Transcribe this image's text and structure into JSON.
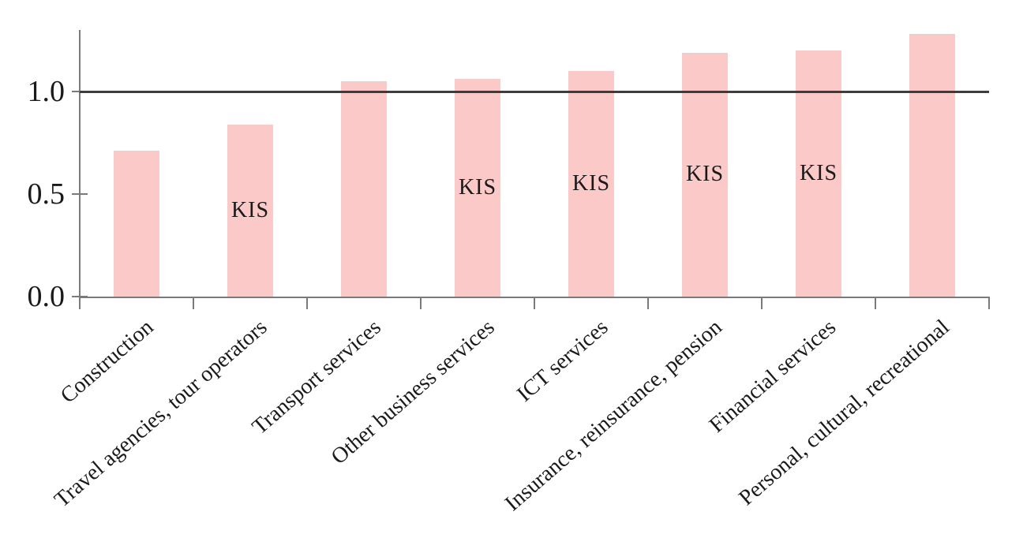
{
  "chart_data": {
    "type": "bar",
    "title": "",
    "xlabel": "",
    "ylabel": "",
    "categories": [
      "Construction",
      "Travel agencies, tour operators",
      "Transport services",
      "Other business services",
      "ICT services",
      "Insurance, reinsurance, pension",
      "Financial services",
      "Personal, cultural, recreational"
    ],
    "values": [
      0.71,
      0.84,
      1.05,
      1.06,
      1.1,
      1.19,
      1.2,
      1.28
    ],
    "annotations": [
      "",
      "KIS",
      "",
      "KIS",
      "KIS",
      "KIS",
      "KIS",
      ""
    ],
    "reference_line_value": 1.0,
    "y_ticks": [
      {
        "label": "0.0",
        "value": 0.0
      },
      {
        "label": "0.5",
        "value": 0.5
      },
      {
        "label": "1.0",
        "value": 1.0
      }
    ],
    "ylim": [
      0,
      1.3
    ],
    "grid": false,
    "legend": false,
    "colors": {
      "bar_fill": "#fcc9c9",
      "reference_line": "#3c3c3c",
      "axis": "#7a7a7a",
      "text": "#1a1a1a"
    }
  }
}
